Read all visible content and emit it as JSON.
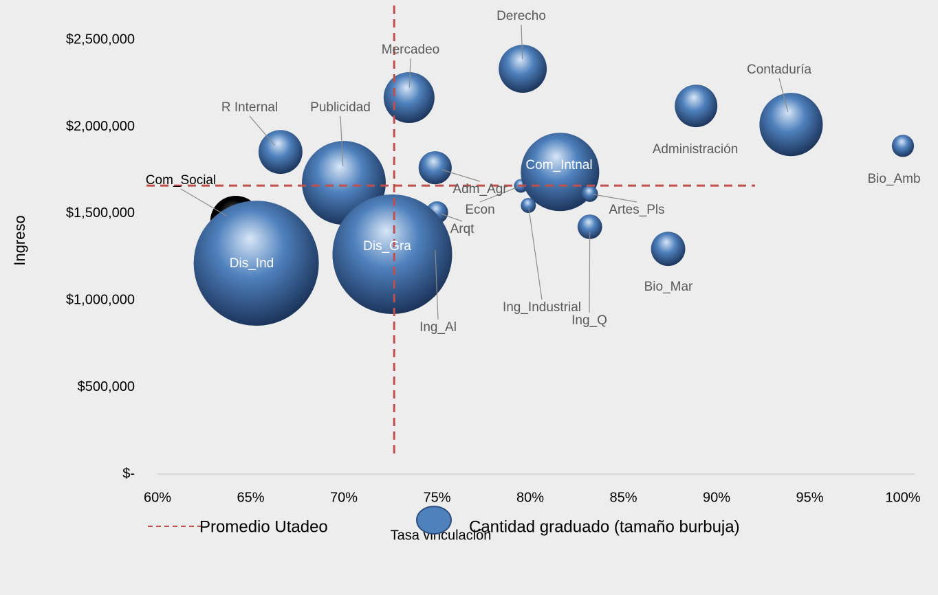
{
  "chart_data": {
    "type": "bubble",
    "xlabel": "Tasa vinculación",
    "ylabel": "Ingreso",
    "xlim": [
      60,
      100
    ],
    "ylim": [
      0,
      2730000
    ],
    "xticks": [
      {
        "value": 60,
        "label": "60%"
      },
      {
        "value": 65,
        "label": "65%"
      },
      {
        "value": 70,
        "label": "70%"
      },
      {
        "value": 75,
        "label": "75%"
      },
      {
        "value": 80,
        "label": "80%"
      },
      {
        "value": 85,
        "label": "85%"
      },
      {
        "value": 90,
        "label": "90%"
      },
      {
        "value": 95,
        "label": "95%"
      },
      {
        "value": 100,
        "label": "100%"
      }
    ],
    "yticks": [
      {
        "value": 0,
        "label": "$-"
      },
      {
        "value": 500000,
        "label": "$500,000"
      },
      {
        "value": 1000000,
        "label": "$1,000,000"
      },
      {
        "value": 1500000,
        "label": "$1,500,000"
      },
      {
        "value": 2000000,
        "label": "$2,000,000"
      },
      {
        "value": 2500000,
        "label": "$2,500,000"
      }
    ],
    "average": {
      "name": "Promedio Utadeo",
      "x": 72.7,
      "y": 1661000,
      "color": "#c0504d"
    },
    "series": [
      {
        "name": "Cantidad graduado (tamaño burbuja)",
        "color": "#4f81bd",
        "labels": [
          "Com_Social",
          "Econ",
          "Ing_Al",
          "Derecho",
          "Mercadeo",
          "Contaduría",
          "Administración",
          "Bio_Amb",
          "R Internal",
          "Publicidad",
          "Adm_Agr",
          "Com_Intnal",
          "Artes_Pls",
          "Ing_Industrial",
          "Arqt",
          "Ing_Q",
          "Bio_Mar",
          "Dis_Ind",
          "Dis_Gra"
        ],
        "x": [
          64.2,
          79.5,
          74.9,
          79.6,
          73.5,
          94.0,
          88.9,
          100.0,
          66.6,
          70.0,
          74.9,
          81.6,
          83.2,
          79.9,
          75.0,
          83.2,
          87.4,
          65.3,
          72.6
        ],
        "values": [
          1456000,
          1660000,
          1305000,
          2334000,
          2168000,
          2013000,
          2120000,
          1890000,
          1855000,
          1677000,
          1764000,
          1740000,
          1614000,
          1547000,
          1507000,
          1424000,
          1297000,
          1214000,
          1266000
        ],
        "sizes": [
          137,
          10,
          10,
          122,
          137,
          212,
          96,
          26,
          102,
          372,
          58,
          325,
          14,
          12,
          26,
          32,
          62,
          828,
          757
        ],
        "colors": [
          "#000000",
          "#4f81bd",
          "#4f81bd",
          "#4f81bd",
          "#4f81bd",
          "#4f81bd",
          "#4f81bd",
          "#4f81bd",
          "#4f81bd",
          "#4f81bd",
          "#4f81bd",
          "#4f81bd",
          "#4f81bd",
          "#4f81bd",
          "#4f81bd",
          "#4f81bd",
          "#4f81bd",
          "#4f81bd",
          "#4f81bd"
        ]
      }
    ]
  }
}
